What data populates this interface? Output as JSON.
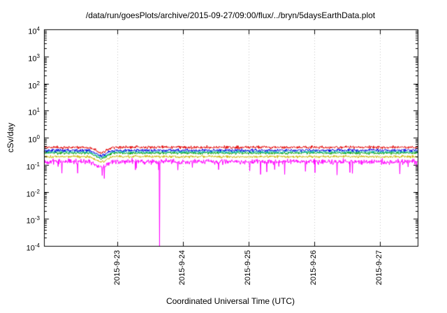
{
  "chart_data": {
    "type": "line",
    "title": "/data/run/goesPlots/archive/2015-09-27/09:00/flux/../bryn/5daysEarthData.plot",
    "xlabel": "Coordinated Universal Time (UTC)",
    "ylabel": "cSv/day",
    "y_scale": "log",
    "ylim": [
      0.0001,
      10000
    ],
    "y_tick_exponents": [
      4,
      3,
      2,
      1,
      0,
      -1,
      -2,
      -3,
      -4
    ],
    "x_ticks": [
      {
        "label": "2015-9-23",
        "day": 23
      },
      {
        "label": "2015-9-24",
        "day": 24
      },
      {
        "label": "2015-9-25",
        "day": 25
      },
      {
        "label": "2015-9-26",
        "day": 26
      },
      {
        "label": "2015-9-27",
        "day": 27
      }
    ],
    "xlim_days": [
      21.88,
      27.58
    ],
    "grid": {
      "vertical": true,
      "horizontal": false,
      "color": "#c0c0c0",
      "style": "dotted"
    },
    "axis_color": "#000000",
    "background": "#ffffff",
    "points_per_series": 900,
    "seed": 1337,
    "dip": {
      "start_day": 22.58,
      "end_day": 22.92,
      "log_drop": 0.22
    },
    "series": [
      {
        "name": "dark-yellow",
        "color": "#c8b400",
        "base": 0.2,
        "log_noise": 0.07
      },
      {
        "name": "green",
        "color": "#00a000",
        "base": 0.27,
        "log_noise": 0.07
      },
      {
        "name": "cyan",
        "color": "#00b0b0",
        "base": 0.3,
        "log_noise": 0.07
      },
      {
        "name": "blue",
        "color": "#0000e0",
        "base": 0.34,
        "log_noise": 0.08
      },
      {
        "name": "red",
        "color": "#e00000",
        "base": 0.44,
        "log_noise": 0.08
      },
      {
        "name": "magenta",
        "color": "#ff00ff",
        "base": 0.13,
        "log_noise": 0.14,
        "down_spike_prob": 0.04,
        "down_spike_log_depth": 0.5,
        "big_spike": {
          "day": 23.64,
          "value": 0.0001
        }
      }
    ]
  }
}
